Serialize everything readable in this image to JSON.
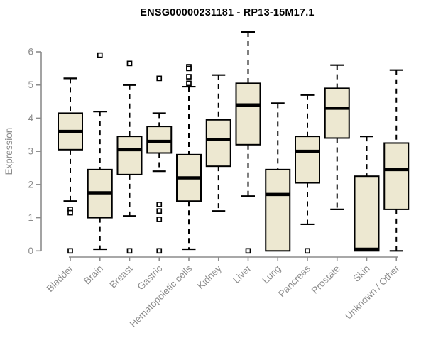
{
  "title": "ENSG00000231181 - RP13-15M17.1",
  "chart_data": {
    "type": "boxplot",
    "title": "ENSG00000231181 - RP13-15M17.1",
    "xlabel": "",
    "ylabel": "Expression",
    "ylim": [
      0,
      6.8
    ],
    "yticks": [
      0,
      1,
      2,
      3,
      4,
      5,
      6
    ],
    "grid": false,
    "legend": "none",
    "categories": [
      "Bladder",
      "Brain",
      "Breast",
      "Gastric",
      "Hematopoietic cells",
      "Kidney",
      "Liver",
      "Lung",
      "Pancreas",
      "Prostate",
      "Skin",
      "Unknown / Other"
    ],
    "series": [
      {
        "category": "Bladder",
        "whisker_low": 1.5,
        "q1": 3.05,
        "median": 3.6,
        "q3": 4.15,
        "whisker_high": 5.2,
        "outliers": [
          1.25,
          1.15,
          0
        ]
      },
      {
        "category": "Brain",
        "whisker_low": 0.05,
        "q1": 1.0,
        "median": 1.75,
        "q3": 2.45,
        "whisker_high": 4.2,
        "outliers": [
          5.9
        ]
      },
      {
        "category": "Breast",
        "whisker_low": 1.05,
        "q1": 2.3,
        "median": 3.05,
        "q3": 3.45,
        "whisker_high": 5.0,
        "outliers": [
          5.65,
          0
        ]
      },
      {
        "category": "Gastric",
        "whisker_low": 2.4,
        "q1": 2.95,
        "median": 3.3,
        "q3": 3.75,
        "whisker_high": 4.15,
        "outliers": [
          5.2,
          1.4,
          1.2,
          0.95,
          0
        ]
      },
      {
        "category": "Hematopoietic cells",
        "whisker_low": 0.05,
        "q1": 1.5,
        "median": 2.2,
        "q3": 2.9,
        "whisker_high": 4.95,
        "outliers": [
          5.55,
          5.5,
          5.25,
          5.05
        ]
      },
      {
        "category": "Kidney",
        "whisker_low": 1.2,
        "q1": 2.55,
        "median": 3.35,
        "q3": 3.95,
        "whisker_high": 5.3,
        "outliers": []
      },
      {
        "category": "Liver",
        "whisker_low": 1.65,
        "q1": 3.2,
        "median": 4.4,
        "q3": 5.05,
        "whisker_high": 6.6,
        "outliers": [
          0
        ]
      },
      {
        "category": "Lung",
        "whisker_low": 0,
        "q1": 0,
        "median": 1.7,
        "q3": 2.45,
        "whisker_high": 4.45,
        "outliers": []
      },
      {
        "category": "Pancreas",
        "whisker_low": 0.8,
        "q1": 2.05,
        "median": 3.0,
        "q3": 3.45,
        "whisker_high": 4.7,
        "outliers": [
          0
        ]
      },
      {
        "category": "Prostate",
        "whisker_low": 1.25,
        "q1": 3.4,
        "median": 4.3,
        "q3": 4.9,
        "whisker_high": 5.6,
        "outliers": []
      },
      {
        "category": "Skin",
        "whisker_low": 0,
        "q1": 0,
        "median": 0.05,
        "q3": 2.25,
        "whisker_high": 3.45,
        "outliers": []
      },
      {
        "category": "Unknown / Other",
        "whisker_low": 0,
        "q1": 1.25,
        "median": 2.45,
        "q3": 3.25,
        "whisker_high": 5.45,
        "outliers": []
      }
    ],
    "colors": {
      "box_fill": "#ede8d1",
      "box_border": "#000000",
      "median": "#000000",
      "whisker": "#000000",
      "outlier": "#000000",
      "axis": "#8c8c8c",
      "tick_label": "#8c8c8c",
      "title": "#000000",
      "background": "#ffffff"
    }
  }
}
